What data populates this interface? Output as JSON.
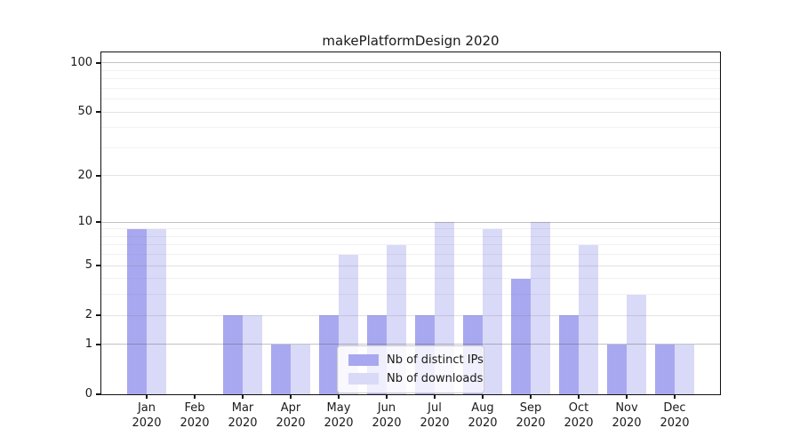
{
  "chart_data": {
    "type": "bar",
    "title": "makePlatformDesign 2020",
    "categories": [
      "Jan",
      "Feb",
      "Mar",
      "Apr",
      "May",
      "Jun",
      "Jul",
      "Aug",
      "Sep",
      "Oct",
      "Nov",
      "Dec"
    ],
    "x_year_label": "2020",
    "series": [
      {
        "name": "Nb of distinct IPs",
        "color": "#a8a8f0",
        "values": [
          9,
          0,
          2,
          1,
          2,
          2,
          2,
          2,
          4,
          2,
          1,
          1
        ]
      },
      {
        "name": "Nb of downloads",
        "color": "#d9d9f8",
        "values": [
          9,
          0,
          2,
          1,
          6,
          7,
          10,
          9,
          10,
          7,
          3,
          1
        ]
      }
    ],
    "yscale": "log1p",
    "ylim": [
      0,
      116
    ],
    "yticks_major": [
      0,
      1,
      2,
      5,
      10,
      20,
      50,
      100
    ],
    "yticks_minor": [
      3,
      4,
      6,
      7,
      8,
      9,
      30,
      40,
      60,
      70,
      80,
      90
    ],
    "grid": true,
    "legend_position": "lower center",
    "background_color": "#ffffff",
    "axis_color": "#111111"
  }
}
